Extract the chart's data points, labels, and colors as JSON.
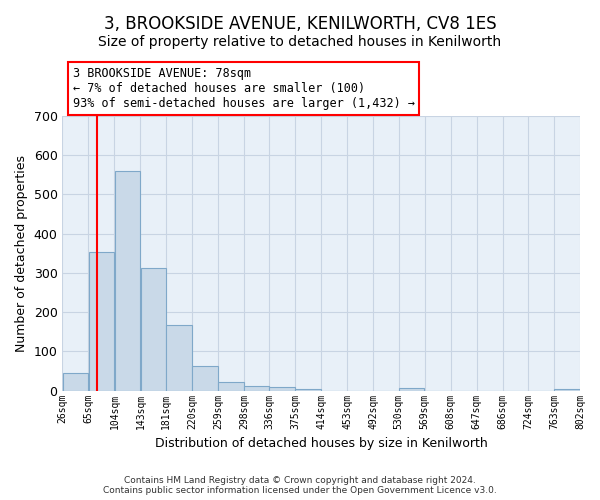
{
  "title": "3, BROOKSIDE AVENUE, KENILWORTH, CV8 1ES",
  "subtitle": "Size of property relative to detached houses in Kenilworth",
  "xlabel": "Distribution of detached houses by size in Kenilworth",
  "ylabel": "Number of detached properties",
  "footer_line1": "Contains HM Land Registry data © Crown copyright and database right 2024.",
  "footer_line2": "Contains public sector information licensed under the Open Government Licence v3.0.",
  "bar_edges": [
    26,
    65,
    104,
    143,
    181,
    220,
    259,
    298,
    336,
    375,
    414,
    453,
    492,
    530,
    569,
    608,
    647,
    686,
    724,
    763,
    802
  ],
  "bar_heights": [
    45,
    353,
    560,
    312,
    168,
    62,
    22,
    12,
    8,
    5,
    0,
    0,
    0,
    7,
    0,
    0,
    0,
    0,
    0,
    5
  ],
  "bar_color": "#c9d9e8",
  "bar_edge_color": "#7fa8c9",
  "property_size": 78,
  "annotation_line1": "3 BROOKSIDE AVENUE: 78sqm",
  "annotation_line2": "← 7% of detached houses are smaller (100)",
  "annotation_line3": "93% of semi-detached houses are larger (1,432) →",
  "annotation_box_color": "white",
  "annotation_box_edge_color": "red",
  "red_line_color": "red",
  "ylim": [
    0,
    700
  ],
  "yticks": [
    0,
    100,
    200,
    300,
    400,
    500,
    600,
    700
  ],
  "grid_color": "#c8d4e3",
  "bg_color": "#e8f0f8",
  "title_fontsize": 12,
  "subtitle_fontsize": 10,
  "title_fontweight": "normal"
}
